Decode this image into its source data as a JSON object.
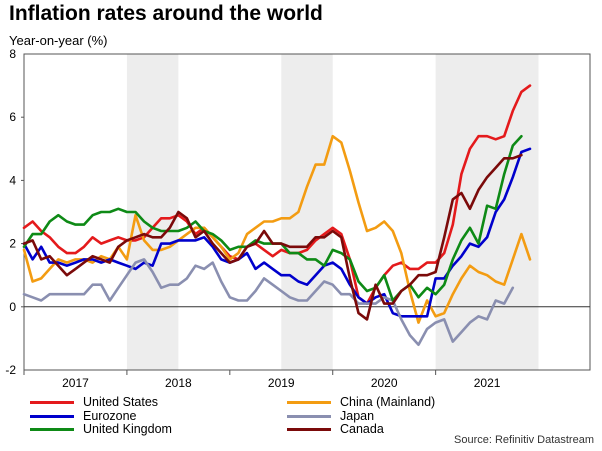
{
  "chart_data": {
    "type": "line",
    "title": "Inflation rates around the world",
    "subtitle": "Year-on-year (%)",
    "source": "Source: Refinitiv Datastream",
    "ylim": [
      -2,
      8
    ],
    "y_ticks": [
      "-2",
      "0",
      "2",
      "4",
      "6",
      "8"
    ],
    "x_range": [
      2016.5,
      2022.0
    ],
    "x_ticks": [
      {
        "label": "2017",
        "at": 2017.0
      },
      {
        "label": "2018",
        "at": 2018.0
      },
      {
        "label": "2019",
        "at": 2019.0
      },
      {
        "label": "2020",
        "at": 2020.0
      },
      {
        "label": "2021",
        "at": 2021.0
      }
    ],
    "shaded_years": [
      [
        2017.5,
        2018.0
      ],
      [
        2019.0,
        2019.5
      ],
      [
        2020.5,
        2021.5
      ]
    ],
    "series": [
      {
        "name": "United States",
        "color": "#e41a1c",
        "start": 2016.5,
        "values": [
          2.5,
          2.7,
          2.4,
          2.2,
          1.9,
          1.7,
          1.7,
          1.9,
          2.2,
          2.0,
          2.1,
          2.2,
          2.1,
          2.1,
          2.2,
          2.5,
          2.8,
          2.8,
          2.9,
          2.7,
          2.3,
          2.5,
          2.2,
          1.9,
          1.6,
          1.5,
          1.9,
          2.0,
          1.8,
          1.6,
          1.8,
          1.7,
          1.7,
          1.8,
          2.1,
          2.3,
          2.5,
          2.3,
          1.5,
          0.3,
          0.1,
          0.6,
          1.0,
          1.3,
          1.4,
          1.2,
          1.2,
          1.4,
          1.4,
          1.7,
          2.6,
          4.2,
          5.0,
          5.4,
          5.4,
          5.3,
          5.4,
          6.2,
          6.8,
          7.0
        ]
      },
      {
        "name": "China (Mainland)",
        "color": "#f39c12",
        "start": 2016.5,
        "values": [
          1.8,
          0.8,
          0.9,
          1.2,
          1.5,
          1.4,
          1.5,
          1.5,
          1.4,
          1.6,
          1.5,
          1.9,
          1.5,
          2.9,
          2.1,
          1.8,
          1.8,
          1.9,
          2.1,
          2.3,
          2.5,
          2.5,
          2.2,
          1.9,
          1.5,
          1.7,
          2.3,
          2.5,
          2.7,
          2.7,
          2.8,
          2.8,
          3.0,
          3.8,
          4.5,
          4.5,
          5.4,
          5.2,
          4.3,
          3.3,
          2.4,
          2.5,
          2.7,
          2.4,
          1.7,
          0.5,
          -0.5,
          0.2,
          -0.3,
          -0.2,
          0.4,
          0.9,
          1.3,
          1.1,
          1.0,
          0.8,
          0.7,
          1.5,
          2.3,
          1.5
        ]
      },
      {
        "name": "Eurozone",
        "color": "#0000cc",
        "start": 2016.5,
        "values": [
          2.0,
          1.5,
          1.9,
          1.4,
          1.4,
          1.3,
          1.4,
          1.5,
          1.5,
          1.4,
          1.5,
          1.4,
          1.3,
          1.2,
          1.4,
          1.3,
          2.0,
          2.0,
          2.1,
          2.1,
          2.1,
          2.2,
          1.9,
          1.5,
          1.4,
          1.5,
          1.7,
          1.2,
          1.4,
          1.2,
          1.0,
          1.0,
          0.8,
          0.7,
          1.0,
          1.3,
          1.4,
          1.2,
          0.7,
          0.3,
          0.1,
          0.3,
          0.4,
          -0.2,
          -0.3,
          -0.3,
          -0.3,
          -0.3,
          0.9,
          0.9,
          1.3,
          1.6,
          2.0,
          1.9,
          2.2,
          3.0,
          3.4,
          4.1,
          4.9,
          5.0
        ]
      },
      {
        "name": "Japan",
        "color": "#8a8fb0",
        "start": 2016.5,
        "values": [
          0.4,
          0.3,
          0.2,
          0.4,
          0.4,
          0.4,
          0.4,
          0.4,
          0.7,
          0.7,
          0.2,
          0.6,
          1.0,
          1.4,
          1.5,
          1.1,
          0.6,
          0.7,
          0.7,
          0.9,
          1.3,
          1.2,
          1.4,
          0.8,
          0.3,
          0.2,
          0.2,
          0.5,
          0.9,
          0.7,
          0.5,
          0.3,
          0.2,
          0.2,
          0.5,
          0.8,
          0.7,
          0.4,
          0.4,
          0.1,
          0.1,
          0.1,
          0.3,
          0.2,
          -0.4,
          -0.9,
          -1.2,
          -0.7,
          -0.5,
          -0.4,
          -1.1,
          -0.8,
          -0.5,
          -0.3,
          -0.4,
          0.2,
          0.1,
          0.6
        ]
      },
      {
        "name": "United Kingdom",
        "color": "#0e8a16",
        "start": 2016.5,
        "values": [
          1.9,
          2.3,
          2.3,
          2.7,
          2.9,
          2.7,
          2.6,
          2.6,
          2.9,
          3.0,
          3.0,
          3.1,
          3.0,
          3.0,
          2.7,
          2.5,
          2.4,
          2.4,
          2.4,
          2.5,
          2.7,
          2.4,
          2.3,
          2.1,
          1.8,
          1.9,
          1.9,
          2.1,
          2.0,
          2.0,
          2.0,
          1.7,
          1.7,
          1.5,
          1.5,
          1.3,
          1.8,
          1.7,
          1.5,
          0.8,
          0.5,
          0.6,
          1.0,
          0.2,
          0.5,
          0.7,
          0.3,
          0.6,
          0.4,
          0.7,
          1.5,
          2.1,
          2.5,
          2.0,
          3.2,
          3.1,
          4.2,
          5.1,
          5.4
        ]
      },
      {
        "name": "Canada",
        "color": "#7b0a0a",
        "start": 2016.5,
        "values": [
          2.0,
          2.1,
          1.5,
          1.6,
          1.3,
          1.0,
          1.2,
          1.4,
          1.6,
          1.5,
          1.4,
          1.9,
          2.1,
          2.2,
          2.3,
          2.2,
          2.2,
          2.5,
          3.0,
          2.8,
          2.2,
          2.4,
          2.0,
          1.7,
          1.4,
          1.5,
          1.9,
          2.0,
          2.4,
          2.0,
          2.0,
          1.9,
          1.9,
          1.9,
          2.2,
          2.2,
          2.4,
          2.2,
          0.9,
          -0.2,
          -0.4,
          0.7,
          0.1,
          0.1,
          0.5,
          0.7,
          1.0,
          1.0,
          1.1,
          2.2,
          3.4,
          3.6,
          3.1,
          3.7,
          4.1,
          4.4,
          4.7,
          4.7,
          4.8
        ]
      }
    ]
  }
}
